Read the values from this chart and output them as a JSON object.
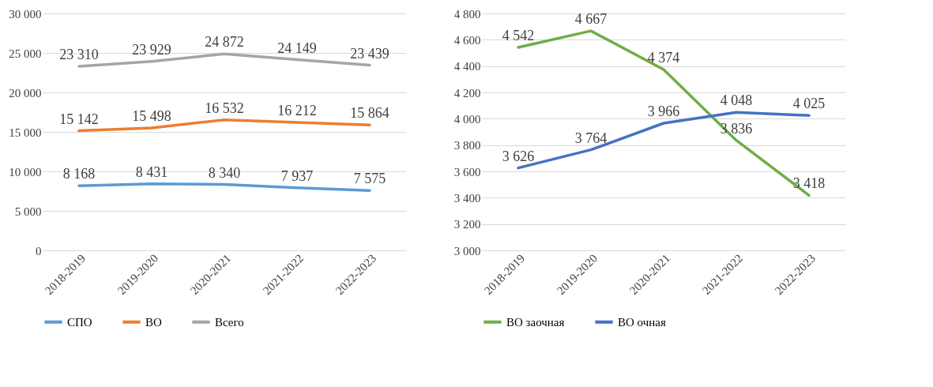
{
  "chart_data": [
    {
      "type": "line",
      "categories": [
        "2018-2019",
        "2019-2020",
        "2020-2021",
        "2021-2022",
        "2022-2023"
      ],
      "series": [
        {
          "name": "СПО",
          "color": "#5b9bd5",
          "values": [
            8168,
            8431,
            8340,
            7937,
            7575
          ],
          "value_labels": [
            "8 168",
            "8 431",
            "8 340",
            "7 937",
            "7 575"
          ]
        },
        {
          "name": "ВО",
          "color": "#ed7d31",
          "values": [
            15142,
            15498,
            16532,
            16212,
            15864
          ],
          "value_labels": [
            "15 142",
            "15 498",
            "16 532",
            "16 212",
            "15 864"
          ]
        },
        {
          "name": "Всего",
          "color": "#a5a5a5",
          "values": [
            23310,
            23929,
            24872,
            24149,
            23439
          ],
          "value_labels": [
            "23 310",
            "23 929",
            "24 872",
            "24 149",
            "23 439"
          ]
        }
      ],
      "ylim": [
        0,
        30000
      ],
      "yticks": [
        0,
        {
          "value": 5000,
          "label": "5 000"
        },
        {
          "value": 10000,
          "label": "10 000"
        },
        {
          "value": 15000,
          "label": "15 000"
        },
        {
          "value": 20000,
          "label": "20 000"
        },
        {
          "value": 25000,
          "label": "25 000"
        },
        {
          "value": 30000,
          "label": "30 000"
        }
      ],
      "grid": "y",
      "legend": "bottom",
      "marker": "none",
      "line_style": "solid"
    },
    {
      "type": "line",
      "categories": [
        "2018-2019",
        "2019-2020",
        "2020-2021",
        "2021-2022",
        "2022-2023"
      ],
      "series": [
        {
          "name": "ВО заочная",
          "color": "#70ad47",
          "values": [
            4542,
            4667,
            4374,
            3836,
            3418
          ],
          "value_labels": [
            "4 542",
            "4 667",
            "4 374",
            "3 836",
            "3 418"
          ]
        },
        {
          "name": "ВО очная",
          "color": "#4472c4",
          "values": [
            3626,
            3764,
            3966,
            4048,
            4025
          ],
          "value_labels": [
            "3 626",
            "3 764",
            "3 966",
            "4 048",
            "4 025"
          ]
        }
      ],
      "ylim": [
        3000,
        4800
      ],
      "yticks": [
        {
          "value": 3000,
          "label": "3 000"
        },
        {
          "value": 3200,
          "label": "3 200"
        },
        {
          "value": 3400,
          "label": "3 400"
        },
        {
          "value": 3600,
          "label": "3 600"
        },
        {
          "value": 3800,
          "label": "3 800"
        },
        {
          "value": 4000,
          "label": "4 000"
        },
        {
          "value": 4200,
          "label": "4 200"
        },
        {
          "value": 4400,
          "label": "4 400"
        },
        {
          "value": 4600,
          "label": "4 600"
        },
        {
          "value": 4800,
          "label": "4 800"
        }
      ],
      "grid": "y",
      "legend": "bottom",
      "marker": "none",
      "line_style": "solid"
    }
  ]
}
